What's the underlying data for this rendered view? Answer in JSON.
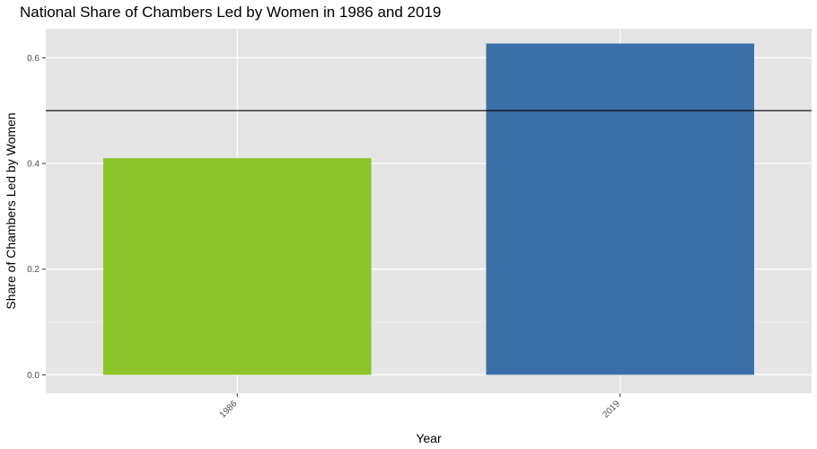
{
  "chart_data": {
    "type": "bar",
    "title": "National Share of Chambers Led by Women in 1986 and 2019",
    "xlabel": "Year",
    "ylabel": "Share of Chambers Led by Women",
    "categories": [
      "1986",
      "2019"
    ],
    "values": [
      0.41,
      0.627
    ],
    "colors": [
      "#8cc42a",
      "#3b6fa8"
    ],
    "reference_line": 0.5,
    "ylim": [
      -0.035,
      0.655
    ],
    "yticks": [
      "0.0",
      "0.2",
      "0.4",
      "0.6"
    ],
    "grid": true,
    "panel_background": "#e5e5e5"
  }
}
